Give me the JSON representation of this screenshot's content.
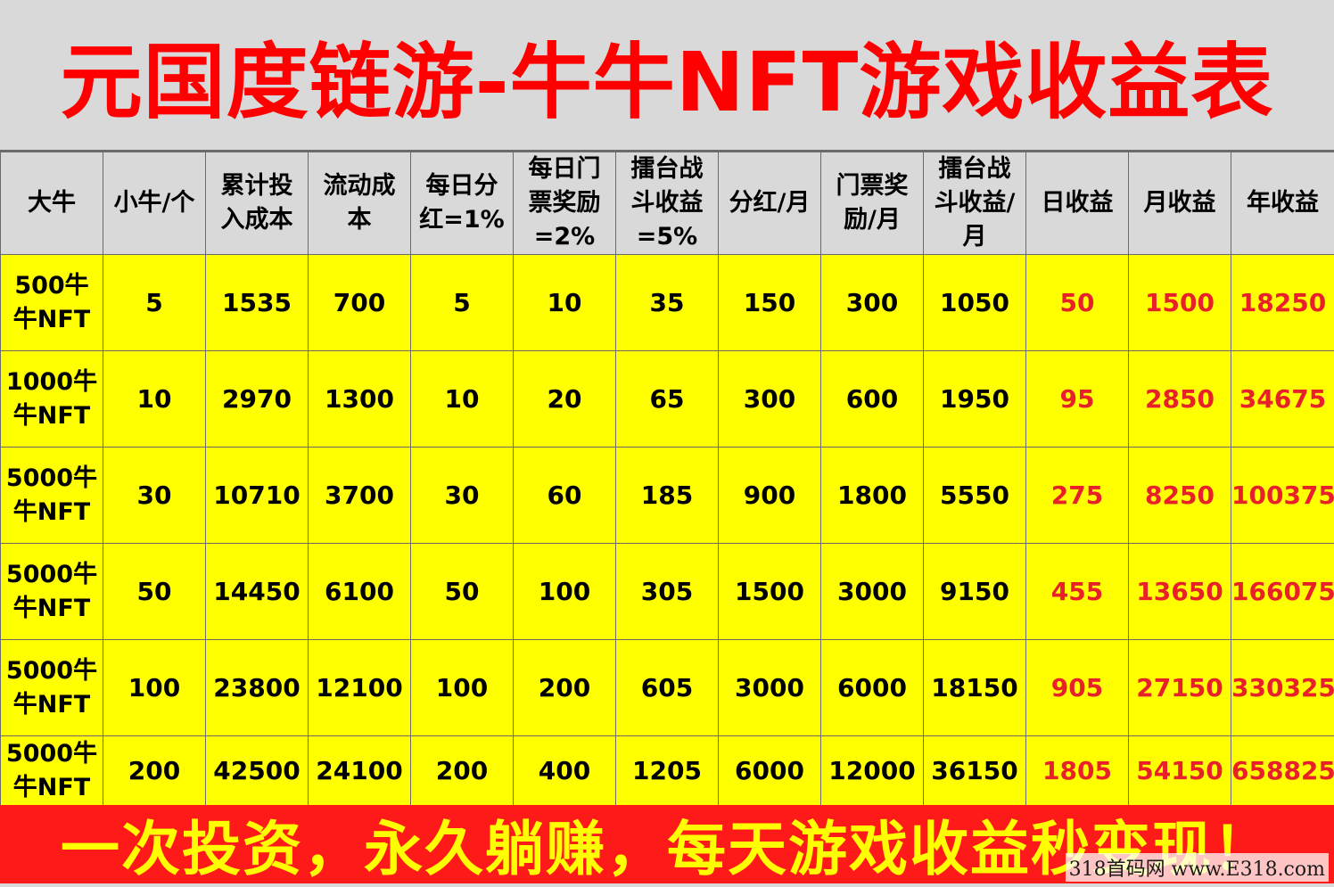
{
  "title": "元国度链游-牛牛NFT游戏收益表",
  "headers": [
    "大牛",
    "小牛/个",
    "累计投入成本",
    "流动成本",
    "每日分红=1%",
    "每日门票奖励=2%",
    "擂台战斗收益=5%",
    "分红/月",
    "门票奖励/月",
    "擂台战斗收益/月",
    "日收益",
    "月收益",
    "年收益"
  ],
  "rows": [
    [
      "500牛牛NFT",
      "5",
      "1535",
      "700",
      "5",
      "10",
      "35",
      "150",
      "300",
      "1050",
      "50",
      "1500",
      "18250"
    ],
    [
      "1000牛牛NFT",
      "10",
      "2970",
      "1300",
      "10",
      "20",
      "65",
      "300",
      "600",
      "1950",
      "95",
      "2850",
      "34675"
    ],
    [
      "5000牛牛NFT",
      "30",
      "10710",
      "3700",
      "30",
      "60",
      "185",
      "900",
      "1800",
      "5550",
      "275",
      "8250",
      "100375"
    ],
    [
      "5000牛牛NFT",
      "50",
      "14450",
      "6100",
      "50",
      "100",
      "305",
      "1500",
      "3000",
      "9150",
      "455",
      "13650",
      "166075"
    ],
    [
      "5000牛牛NFT",
      "100",
      "23800",
      "12100",
      "100",
      "200",
      "605",
      "3000",
      "6000",
      "18150",
      "905",
      "27150",
      "330325"
    ],
    [
      "5000牛牛NFT",
      "200",
      "42500",
      "24100",
      "200",
      "400",
      "1205",
      "6000",
      "12000",
      "36150",
      "1805",
      "54150",
      "658825"
    ]
  ],
  "footer": "一次投资，永久躺赚，每天游戏收益秒变现！",
  "watermark": "318首码网 www.E318.com",
  "colors": {
    "title": "#ff0000",
    "header_bg": "#d9d9d9",
    "cell_bg": "#ffff00",
    "earnings_text": "#e8202a",
    "footer_bg": "#ff1a1a",
    "footer_text": "#ffff00"
  }
}
